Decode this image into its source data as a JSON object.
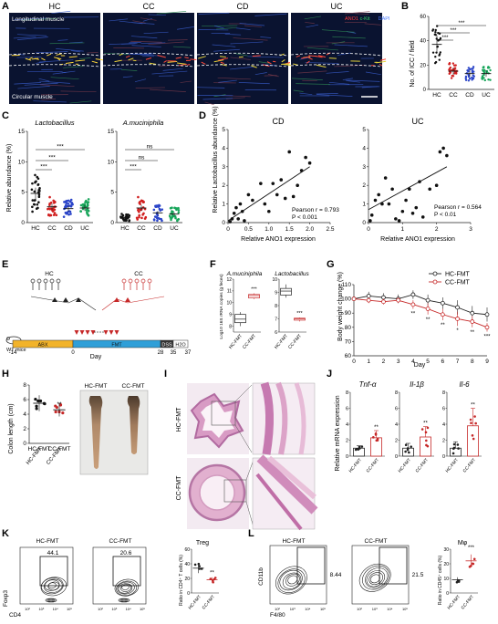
{
  "panels": {
    "A": {
      "letter": "A",
      "groups": [
        "HC",
        "CC",
        "CD",
        "UC"
      ],
      "top_label": "Longitudinal muscle",
      "bottom_label": "Circular muscle",
      "legend": [
        "ANO1",
        "c-Kit",
        "DAPI"
      ],
      "legend_colors": [
        "#ff3b3b",
        "#38d36a",
        "#4c7dff"
      ]
    },
    "B": {
      "letter": "B",
      "ylabel": "No. of ICC / field",
      "sig": [
        "***",
        "***",
        "***"
      ]
    },
    "C": {
      "letter": "C",
      "ylabel": "Relative abundance (%)",
      "left_title": "Lactobacillus",
      "right_title": "A.muciniphila",
      "left_sig": [
        "***",
        "***",
        "***"
      ],
      "right_sig": [
        "***",
        "ns",
        "ns"
      ]
    },
    "D": {
      "letter": "D",
      "ylabel": "Relative Lactobacillus abundance (%)",
      "left_title": "CD",
      "right_title": "UC",
      "xlabel": "Relative ANO1 expression",
      "left_stats": [
        "Pearson r = 0.793",
        "P < 0.001"
      ],
      "right_stats": [
        "Pearson r = 0.564",
        "P < 0.01"
      ]
    },
    "E": {
      "letter": "E",
      "hc_label": "HC",
      "cc_label": "CC",
      "mouse_label": "WT mice",
      "phases": [
        "ABX",
        "FMT",
        "DSS",
        "H2O"
      ],
      "ticks": [
        "-14",
        "0",
        "28",
        "35",
        "37"
      ],
      "xlabel": "Day"
    },
    "F": {
      "letter": "F",
      "left_title": "A.muciniphila",
      "right_title": "Lactobacillus",
      "ylabel": "Log10 16S rRNA copies (g feces)",
      "cats": [
        "HC-FMT",
        "CC-FMT"
      ],
      "sig": [
        "***",
        "***"
      ]
    },
    "G": {
      "letter": "G",
      "ylabel": "Body weight change (%)",
      "xlabel": "Day",
      "legend": [
        "HC-FMT",
        "CC-FMT"
      ],
      "yticks": [
        "60",
        "70",
        "80",
        "90",
        "100",
        "110"
      ],
      "xticks": [
        "0",
        "1",
        "2",
        "3",
        "4",
        "5",
        "6",
        "7",
        "8",
        "9"
      ]
    },
    "H": {
      "letter": "H",
      "ylabel": "Colon length (cm)",
      "cats": [
        "HC-FMT",
        "CC-FMT"
      ],
      "sig": "**",
      "photo_labels": [
        "HC-FMT",
        "CC-FMT"
      ]
    },
    "I": {
      "letter": "I",
      "row_labels": [
        "HC-FMT",
        "CC-FMT"
      ]
    },
    "J": {
      "letter": "J",
      "ylabel": "Relative mRNA expression",
      "genes": [
        "Tnf-α",
        "Il-1β",
        "Il-6"
      ],
      "cats": [
        "HC-FMT",
        "CC-FMT"
      ],
      "sig": [
        "**",
        "**",
        "**"
      ]
    },
    "K": {
      "letter": "K",
      "left_title": "HC-FMT",
      "right_title": "CC-FMT",
      "gate_values": [
        "44.1",
        "20.6"
      ],
      "xlabel": "CD4",
      "ylabel": "Foxp3",
      "plot_title": "Treg",
      "plot_ylabel": "Ratio in CD4⁺ T cells (%)",
      "cats": [
        "HC-FMT",
        "CC-FMT"
      ],
      "sig": "**"
    },
    "L": {
      "letter": "L",
      "left_title": "HC-FMT",
      "right_title": "CC-FMT",
      "gate_values": [
        "8.44",
        "21.5"
      ],
      "xlabel": "F4/80",
      "ylabel": "CD11b",
      "plot_title": "Mφ",
      "plot_ylabel": "Ratio in CD45⁺ cells (%)",
      "cats": [
        "HC-FMT",
        "CC-FMT"
      ],
      "sig": "***"
    }
  },
  "chart_data": [
    {
      "type": "scatter",
      "panel": "B",
      "categories": [
        "HC",
        "CC",
        "CD",
        "UC"
      ],
      "ylim": [
        0,
        60
      ],
      "yticks": [
        "0",
        "20",
        "40",
        "60"
      ],
      "means": [
        37,
        15,
        13,
        13
      ],
      "colors": [
        "#111111",
        "#d11f1f",
        "#2a44c8",
        "#17a55a"
      ]
    },
    {
      "type": "scatter",
      "panel": "C-left",
      "categories": [
        "HC",
        "CC",
        "CD",
        "UC"
      ],
      "ylim": [
        0,
        15
      ],
      "yticks": [
        "0",
        "5",
        "10",
        "15"
      ],
      "means": [
        4.8,
        2.6,
        2.3,
        2.4
      ],
      "colors": [
        "#111111",
        "#d11f1f",
        "#2a44c8",
        "#17a55a"
      ]
    },
    {
      "type": "scatter",
      "panel": "C-right",
      "categories": [
        "HC",
        "CC",
        "CD",
        "UC"
      ],
      "ylim": [
        0,
        15
      ],
      "yticks": [
        "0",
        "5",
        "10",
        "15"
      ],
      "means": [
        0.8,
        2.4,
        1.6,
        1.4
      ],
      "colors": [
        "#111111",
        "#d11f1f",
        "#2a44c8",
        "#17a55a"
      ]
    },
    {
      "type": "scatter",
      "panel": "D-left",
      "xlim": [
        0,
        2.5
      ],
      "ylim": [
        0,
        5
      ],
      "xticks": [
        "0",
        "0.5",
        "1.0",
        "1.5",
        "2.0",
        "2.5"
      ],
      "yticks": [
        "0",
        "1",
        "2",
        "3",
        "4",
        "5"
      ],
      "points": [
        [
          0.05,
          0.05
        ],
        [
          0.1,
          0.2
        ],
        [
          0.15,
          0.5
        ],
        [
          0.2,
          0.8
        ],
        [
          0.25,
          0.2
        ],
        [
          0.3,
          1.0
        ],
        [
          0.35,
          0.6
        ],
        [
          0.4,
          0.1
        ],
        [
          0.5,
          1.5
        ],
        [
          0.6,
          1.2
        ],
        [
          0.8,
          2.1
        ],
        [
          0.9,
          1.0
        ],
        [
          1.0,
          0.6
        ],
        [
          1.1,
          2.1
        ],
        [
          1.2,
          1.5
        ],
        [
          1.3,
          2.3
        ],
        [
          1.4,
          1.3
        ],
        [
          1.5,
          3.8
        ],
        [
          1.6,
          1.4
        ],
        [
          1.7,
          2.0
        ],
        [
          1.8,
          2.8
        ],
        [
          1.9,
          3.5
        ],
        [
          2.0,
          3.2
        ]
      ],
      "fit": [
        [
          0,
          0.1
        ],
        [
          2.0,
          3.0
        ]
      ]
    },
    {
      "type": "scatter",
      "panel": "D-right",
      "xlim": [
        0,
        3
      ],
      "ylim": [
        0,
        5
      ],
      "xticks": [
        "0",
        "1",
        "2",
        "3"
      ],
      "yticks": [
        "0",
        "1",
        "2",
        "3",
        "4",
        "5"
      ],
      "points": [
        [
          0.05,
          0.1
        ],
        [
          0.1,
          0.4
        ],
        [
          0.2,
          1.2
        ],
        [
          0.3,
          1.5
        ],
        [
          0.4,
          1.0
        ],
        [
          0.5,
          2.4
        ],
        [
          0.6,
          1.0
        ],
        [
          0.7,
          1.8
        ],
        [
          0.8,
          0.2
        ],
        [
          0.9,
          0.1
        ],
        [
          1.0,
          0.6
        ],
        [
          1.1,
          1.2
        ],
        [
          1.2,
          1.8
        ],
        [
          1.3,
          0.5
        ],
        [
          1.4,
          0.8
        ],
        [
          1.5,
          2.2
        ],
        [
          1.6,
          0.3
        ],
        [
          1.8,
          1.8
        ],
        [
          2.0,
          2.0
        ],
        [
          2.1,
          3.8
        ],
        [
          2.2,
          4.0
        ],
        [
          2.3,
          3.6
        ]
      ],
      "fit": [
        [
          0,
          0.7
        ],
        [
          2.3,
          3.0
        ]
      ]
    },
    {
      "type": "line",
      "panel": "G",
      "x": [
        0,
        1,
        2,
        3,
        4,
        5,
        6,
        7,
        8,
        9
      ],
      "ylim": [
        60,
        110
      ],
      "series": [
        {
          "name": "HC-FMT",
          "values": [
            100,
            102,
            101,
            100,
            103,
            99,
            97,
            94,
            90,
            89
          ],
          "err": [
            1,
            3,
            3,
            3,
            3,
            4,
            4,
            5,
            5,
            5
          ]
        },
        {
          "name": "CC-FMT",
          "values": [
            100,
            99,
            98,
            99,
            96,
            93,
            89,
            86,
            84,
            80
          ],
          "err": [
            1,
            2,
            2,
            2,
            3,
            4,
            4,
            5,
            4,
            3
          ]
        }
      ],
      "sig": [
        "",
        "",
        "",
        "",
        "**",
        "**",
        "**",
        "*",
        "**",
        "***"
      ]
    },
    {
      "type": "scatter",
      "panel": "H",
      "categories": [
        "HC-FMT",
        "CC-FMT"
      ],
      "ylim": [
        0,
        8
      ],
      "yticks": [
        "0",
        "2",
        "4",
        "6",
        "8"
      ],
      "means": [
        5.5,
        4.6
      ]
    },
    {
      "type": "bar",
      "panel": "F-left",
      "categories": [
        "HC-FMT",
        "CC-FMT"
      ],
      "yticks": [
        "8",
        "9",
        "10",
        "11",
        "12"
      ],
      "ylim": [
        7.5,
        12
      ],
      "box": [
        [
          8.0,
          8.3,
          8.6,
          9.0,
          9.2
        ],
        [
          10.3,
          10.4,
          10.6,
          10.7,
          10.8
        ]
      ]
    },
    {
      "type": "bar",
      "panel": "F-right",
      "categories": [
        "HC-FMT",
        "CC-FMT"
      ],
      "yticks": [
        "6",
        "7",
        "8",
        "9",
        "10"
      ],
      "ylim": [
        6,
        10
      ],
      "box": [
        [
          8.6,
          8.8,
          9.1,
          9.3,
          9.6
        ],
        [
          6.8,
          6.9,
          7.0,
          7.05,
          7.1
        ]
      ]
    },
    {
      "type": "bar",
      "panel": "J",
      "categories": [
        "HC-FMT",
        "CC-FMT"
      ],
      "genes": [
        "Tnf-α",
        "Il-1β",
        "Il-6"
      ],
      "yticks": [
        "0",
        "2",
        "4",
        "6",
        "8"
      ],
      "ylim": [
        0,
        8
      ],
      "values": [
        [
          1,
          2.3
        ],
        [
          1,
          2.4
        ],
        [
          1,
          3.8
        ]
      ],
      "err": [
        [
          0.3,
          0.9
        ],
        [
          0.6,
          1.3
        ],
        [
          0.8,
          2.2
        ]
      ]
    },
    {
      "type": "scatter",
      "panel": "K-right",
      "categories": [
        "HC-FMT",
        "CC-FMT"
      ],
      "ylim": [
        0,
        60
      ],
      "yticks": [
        "0",
        "20",
        "40",
        "60"
      ],
      "means": [
        34,
        18
      ]
    },
    {
      "type": "scatter",
      "panel": "L-right",
      "categories": [
        "HC-FMT",
        "CC-FMT"
      ],
      "ylim": [
        0,
        30
      ],
      "yticks": [
        "0",
        "10",
        "20",
        "30"
      ],
      "means": [
        9,
        22
      ]
    }
  ]
}
